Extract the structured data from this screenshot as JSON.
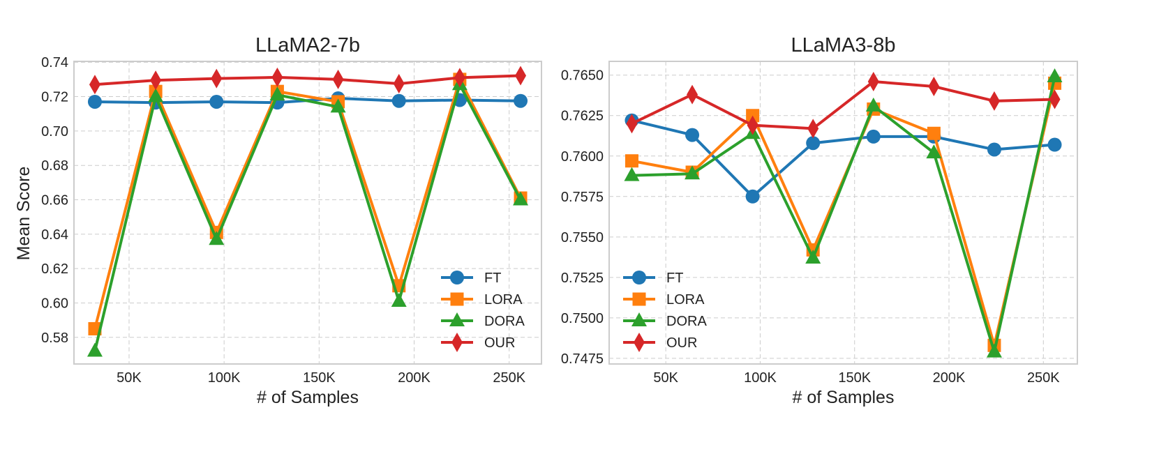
{
  "figure": {
    "shared_ylabel": "Mean Score"
  },
  "colors": {
    "FT": "#1f77b4",
    "LORA": "#ff7f0e",
    "DORA": "#2ca02c",
    "OUR": "#d62728",
    "grid": "#cccccc",
    "frame": "#cccccc"
  },
  "chart_data": [
    {
      "type": "line",
      "title": "LLaMA2-7b",
      "xlabel": "# of Samples",
      "ylabel": "Mean Score",
      "x": [
        32000,
        64000,
        96000,
        128000,
        160000,
        192000,
        224000,
        256000
      ],
      "xlim": [
        21000,
        267000
      ],
      "ylim": [
        0.5645,
        0.7405
      ],
      "xticks": [
        50000,
        100000,
        150000,
        200000,
        250000
      ],
      "xtick_labels": [
        "50K",
        "100K",
        "150K",
        "200K",
        "250K"
      ],
      "yticks": [
        0.58,
        0.6,
        0.62,
        0.64,
        0.66,
        0.68,
        0.7,
        0.72,
        0.74
      ],
      "ytick_labels": [
        "0.58",
        "0.60",
        "0.62",
        "0.64",
        "0.66",
        "0.68",
        "0.70",
        "0.72",
        "0.74"
      ],
      "grid": true,
      "legend_position": "lower-right",
      "series": [
        {
          "name": "FT",
          "marker": "circle",
          "values": [
            0.717,
            0.7165,
            0.717,
            0.7165,
            0.719,
            0.7175,
            0.718,
            0.7175
          ]
        },
        {
          "name": "LORA",
          "marker": "square",
          "values": [
            0.585,
            0.723,
            0.641,
            0.723,
            0.717,
            0.61,
            0.73,
            0.661
          ]
        },
        {
          "name": "DORA",
          "marker": "triangle",
          "values": [
            0.572,
            0.72,
            0.637,
            0.721,
            0.714,
            0.601,
            0.727,
            0.66
          ]
        },
        {
          "name": "OUR",
          "marker": "diamond",
          "values": [
            0.727,
            0.7295,
            0.7305,
            0.7312,
            0.73,
            0.7275,
            0.731,
            0.7322
          ]
        }
      ]
    },
    {
      "type": "line",
      "title": "LLaMA3-8b",
      "xlabel": "# of Samples",
      "ylabel": "",
      "x": [
        32000,
        64000,
        96000,
        128000,
        160000,
        192000,
        224000,
        256000
      ],
      "xlim": [
        20000,
        268000
      ],
      "ylim": [
        0.74715,
        0.76585
      ],
      "xticks": [
        50000,
        100000,
        150000,
        200000,
        250000
      ],
      "xtick_labels": [
        "50K",
        "100K",
        "150K",
        "200K",
        "250K"
      ],
      "yticks": [
        0.7475,
        0.75,
        0.7525,
        0.755,
        0.7575,
        0.76,
        0.7625,
        0.765
      ],
      "ytick_labels": [
        "0.7475",
        "0.7500",
        "0.7525",
        "0.7550",
        "0.7575",
        "0.7600",
        "0.7625",
        "0.7650"
      ],
      "grid": true,
      "legend_position": "lower-left",
      "series": [
        {
          "name": "FT",
          "marker": "circle",
          "values": [
            0.7622,
            0.7613,
            0.7575,
            0.7608,
            0.7612,
            0.7612,
            0.7604,
            0.7607
          ]
        },
        {
          "name": "LORA",
          "marker": "square",
          "values": [
            0.7597,
            0.759,
            0.7625,
            0.7542,
            0.7629,
            0.7614,
            0.7483,
            0.7645
          ]
        },
        {
          "name": "DORA",
          "marker": "triangle",
          "values": [
            0.7588,
            0.7589,
            0.7614,
            0.7537,
            0.7631,
            0.7602,
            0.7479,
            0.7649
          ]
        },
        {
          "name": "OUR",
          "marker": "diamond",
          "values": [
            0.762,
            0.7638,
            0.7619,
            0.7617,
            0.7646,
            0.7643,
            0.7634,
            0.7635
          ]
        }
      ]
    }
  ]
}
